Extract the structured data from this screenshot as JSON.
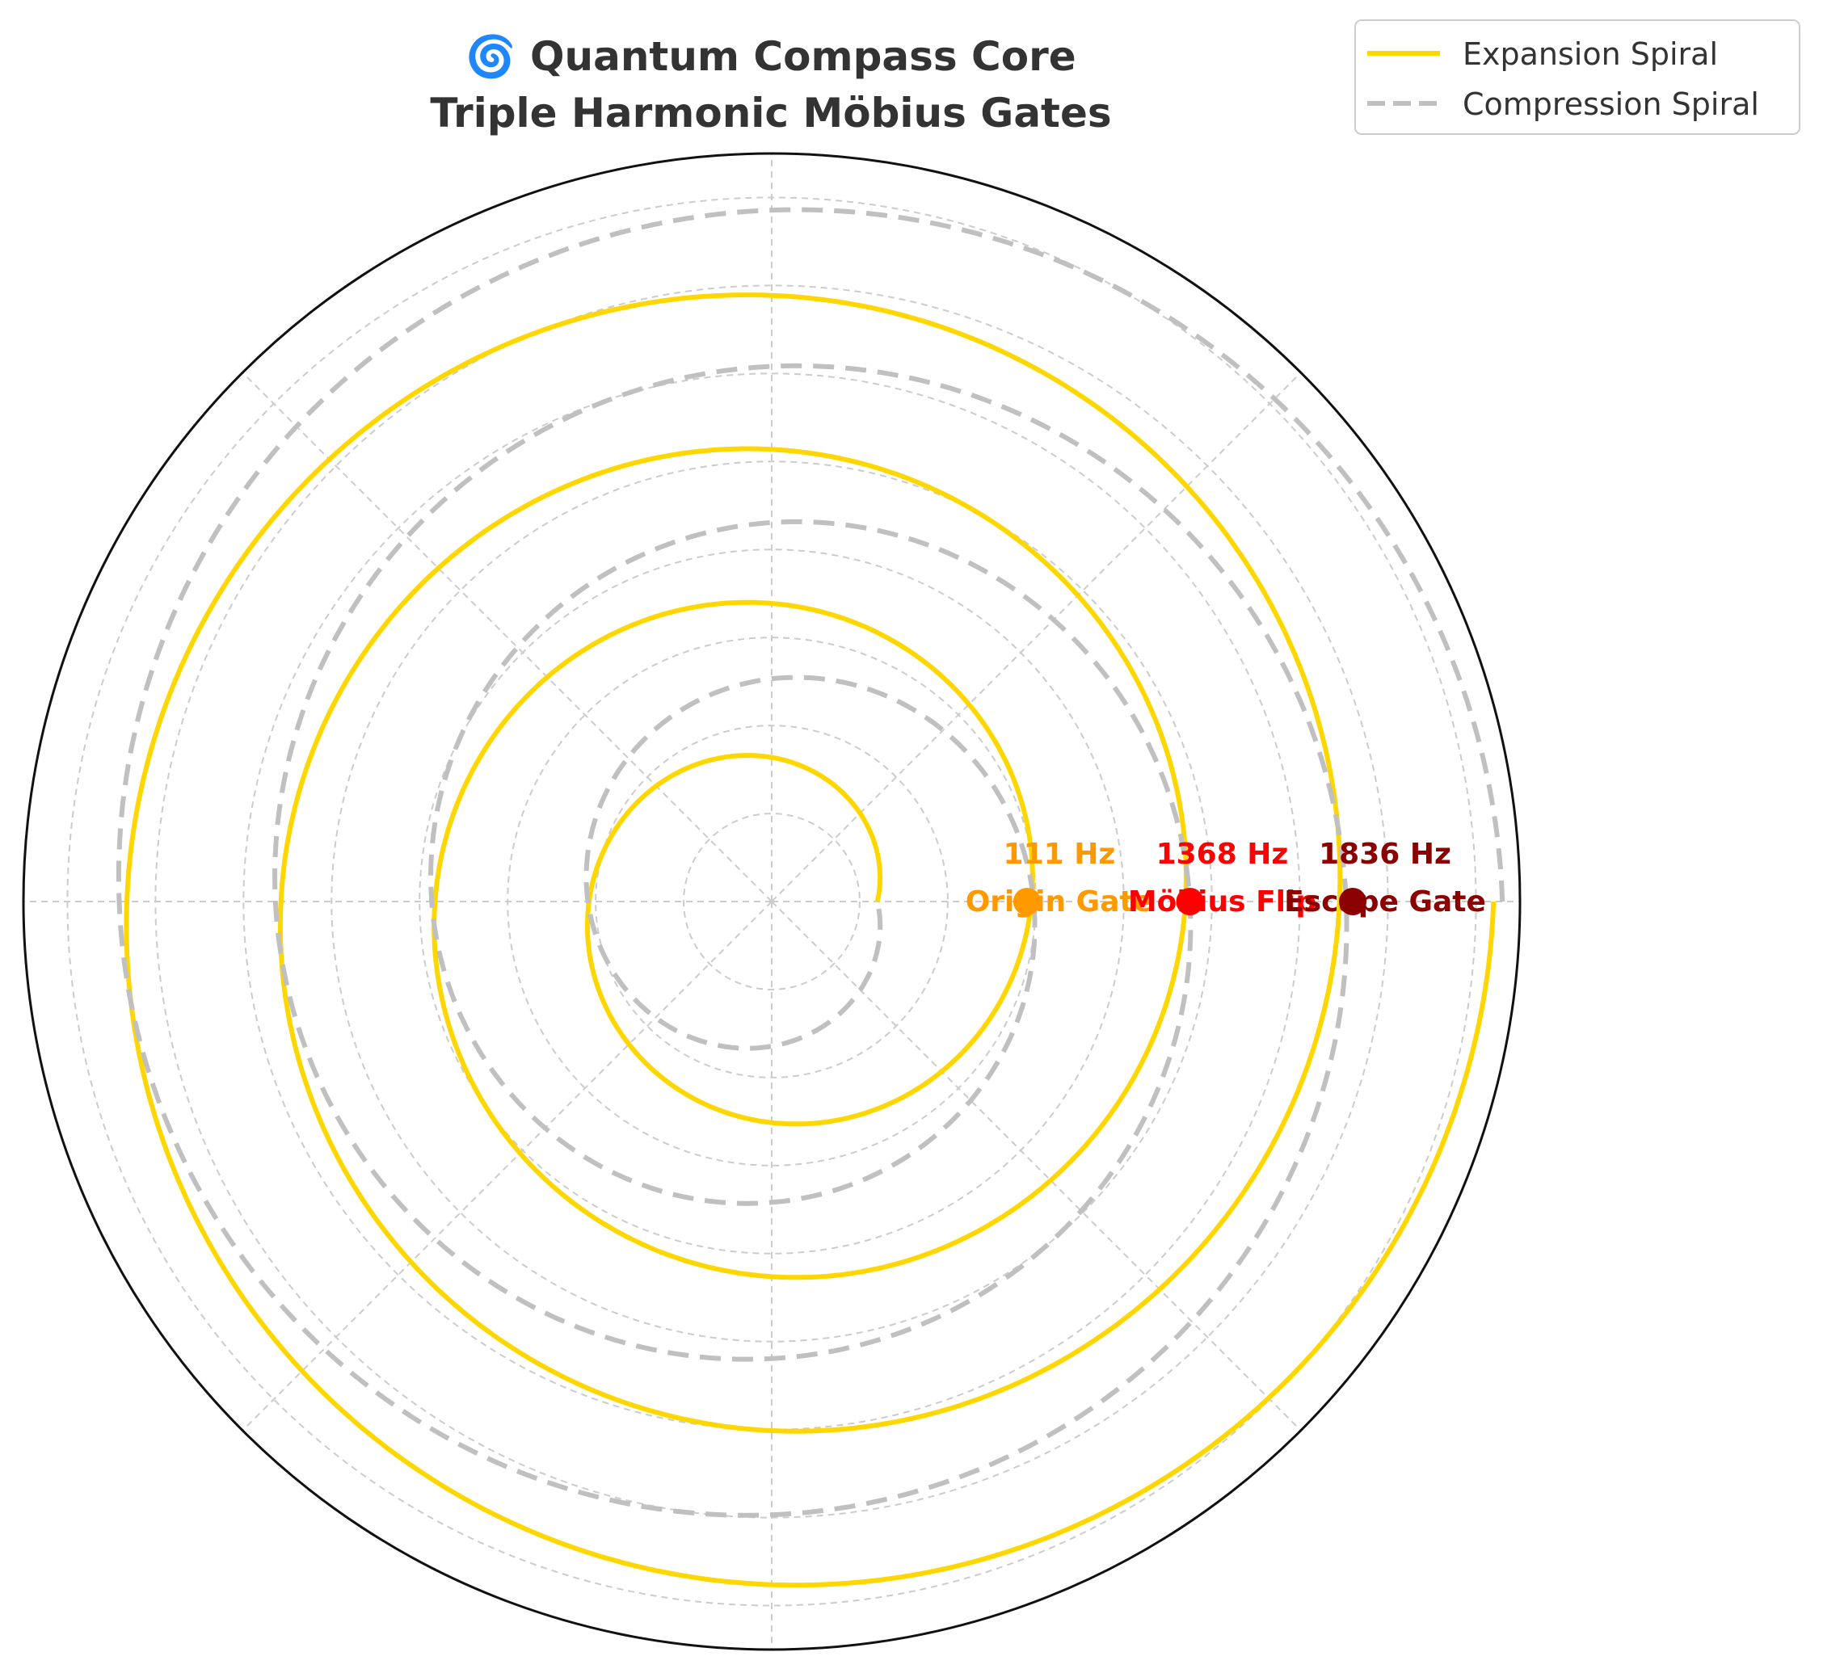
{
  "chart_data": {
    "type": "polar-line",
    "title_line1": "🌀 Quantum Compass Core",
    "title_line2": "Triple Harmonic Möbius Gates",
    "colors": {
      "expansion": "#FFD700",
      "compression": "#C0C0C0",
      "origin": "#FF9900",
      "mobius": "#FF0000",
      "escape": "#8B0000",
      "grid": "#cccccc",
      "frame": "#111111",
      "title": "#333333"
    },
    "theta_gridlines_deg": [
      0,
      45,
      90,
      135,
      180,
      225,
      270,
      315
    ],
    "r_gridlines": [
      1,
      2,
      3,
      4,
      5,
      6,
      7,
      8
    ],
    "rlim": [
      0,
      8.5
    ],
    "theta_range_turns": [
      0,
      4
    ],
    "series": [
      {
        "name": "Expansion Spiral",
        "style": "solid",
        "r_start": 1.2,
        "r_end": 8.2
      },
      {
        "name": "Compression Spiral",
        "style": "dashed",
        "r_start": 8.3,
        "r_end": 1.2
      }
    ],
    "gates": [
      {
        "frequency": "111 Hz",
        "name": "Origin Gate",
        "theta_deg": 0,
        "r": 2.9
      },
      {
        "frequency": "1368 Hz",
        "name": "Möbius Flip",
        "theta_deg": 0,
        "r": 4.75
      },
      {
        "frequency": "1836 Hz",
        "name": "Escape Gate",
        "theta_deg": 0,
        "r": 6.6
      }
    ],
    "legend_position": "top-right"
  }
}
